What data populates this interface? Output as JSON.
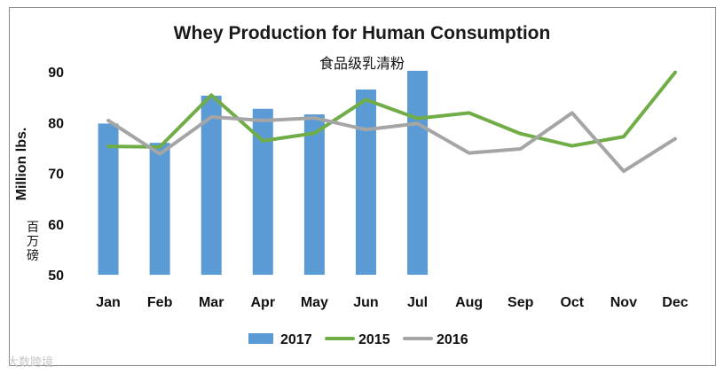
{
  "chart_data": {
    "type": "bar",
    "title": "Whey Production for Human Consumption",
    "subtitle": "食品级乳清粉",
    "ylabel": "Million lbs.",
    "ylabel_cn": "百万磅",
    "ylim": [
      50,
      90
    ],
    "yticks": [
      "50",
      "60",
      "70",
      "80",
      "90"
    ],
    "categories": [
      "Jan",
      "Feb",
      "Mar",
      "Apr",
      "May",
      "Jun",
      "Jul",
      "Aug",
      "Sep",
      "Oct",
      "Nov",
      "Dec"
    ],
    "series": [
      {
        "name": "2017",
        "type": "bar",
        "color": "#5b9bd5",
        "values": [
          79.8,
          76.0,
          85.3,
          82.7,
          81.6,
          86.5,
          90.2,
          null,
          null,
          null,
          null,
          null
        ]
      },
      {
        "name": "2015",
        "type": "line",
        "color": "#70ad47",
        "values": [
          75.3,
          75.2,
          85.4,
          76.4,
          77.9,
          84.5,
          80.8,
          81.9,
          77.8,
          75.4,
          77.2,
          89.9
        ]
      },
      {
        "name": "2016",
        "type": "line",
        "color": "#a5a5a5",
        "values": [
          80.4,
          73.8,
          81.1,
          80.4,
          80.9,
          78.6,
          79.8,
          74.0,
          74.8,
          81.9,
          70.4,
          76.8
        ]
      }
    ],
    "legend_position": "bottom",
    "grid": false
  },
  "watermark": "大数跨境"
}
